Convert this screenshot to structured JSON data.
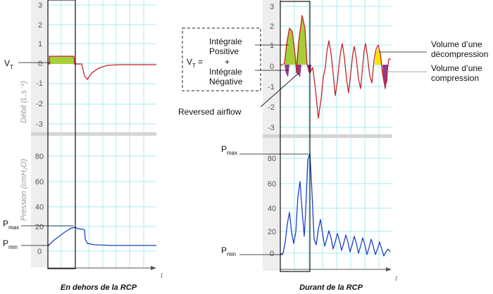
{
  "left_panel": {
    "flow_axis_label": "Débit (L.s⁻¹)",
    "pressure_axis_label": "Pression (cmH₂O)",
    "flow_ticks": [
      "3",
      "2",
      "1",
      "0",
      "-1",
      "-2",
      "-3"
    ],
    "pressure_ticks": [
      "80",
      "60",
      "40",
      "20",
      "0"
    ],
    "vt_label": "V",
    "vt_sub": "T",
    "pmax_label": "P",
    "pmax_sub": "max",
    "pmin_label": "P",
    "pmin_sub": "min",
    "time_label": "t",
    "caption": "En dehors de la RCP"
  },
  "right_panel": {
    "flow_ticks": [
      "3",
      "2",
      "1",
      "0",
      "-1",
      "-2",
      "-3"
    ],
    "pressure_ticks": [
      "80",
      "60",
      "40",
      "20",
      "0"
    ],
    "formula": {
      "vt": "V",
      "vt_sub": "T",
      "equals": "=",
      "line1": "Intégrale",
      "line2": "Positive",
      "plus": "+",
      "line3": "Intégrale",
      "line4": "Négative"
    },
    "reversed_airflow": "Reversed airflow",
    "pmax_label": "P",
    "pmax_sub": "max",
    "pmin_label": "P",
    "pmin_sub": "min",
    "decompression_l1": "Volume d’une",
    "decompression_l2": "décompression",
    "compression_l1": "Volume d’une",
    "compression_l2": "compression",
    "time_label": "t",
    "caption": "Durant de la RCP"
  },
  "colors": {
    "flow_trace": "#c8222a",
    "pressure_trace": "#1f3fc4",
    "grid": "#8fe3ec",
    "positive_area": "#a6ce39",
    "negative_area": "#8e3a8e",
    "positive_area_alt": "#f2e600",
    "box_fill": "#f2f2f2"
  }
}
